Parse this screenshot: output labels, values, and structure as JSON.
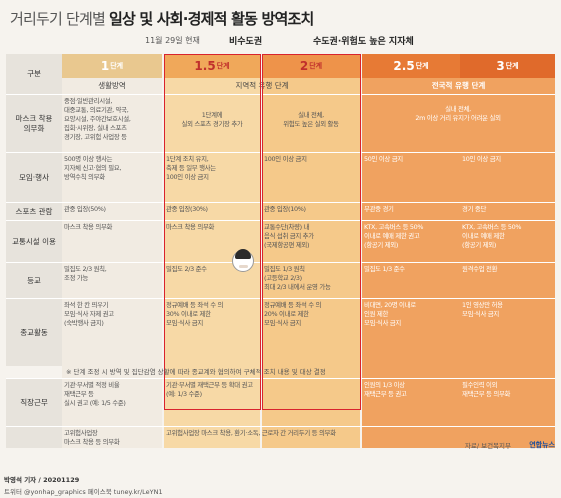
{
  "title_light": "거리두기 단계별 ",
  "title_bold": "일상 및 사회·경제적 활동 방역조치",
  "date_label": "11월 29일 현재",
  "stage_b1": "비수도권",
  "stage_b2": "수도권·위험도 높은 지자체",
  "header_label": "구분",
  "stages": [
    {
      "num": "1",
      "unit": "단계"
    },
    {
      "num": "1.5",
      "unit": "단계"
    },
    {
      "num": "2",
      "unit": "단계"
    },
    {
      "num": "2.5",
      "unit": "단계"
    },
    {
      "num": "3",
      "unit": "단계"
    }
  ],
  "subheads": {
    "s1": "생활방역",
    "s2": "지역적 유행 단계",
    "s3": "전국적 유행 단계"
  },
  "rows": [
    {
      "head": "마스크 착용\n의무화",
      "c1": "중점·일반관리시설,\n대중교통, 의료기관, 약국,\n요양시설, 주야간보호시설,\n집회·시위장, 실내 스포츠\n경기장, 고위험 사업장 등",
      "c2": "1단계에\n실외 스포츠 경기장 추가",
      "c3": "실내 전체,\n위험도 높은 실외 활동",
      "c4": "실내 전체,\n2m 이상 거리 유지가 어려운 실외"
    },
    {
      "head": "모임·행사",
      "c1": "500명 이상 행사는\n지자체 신고·협의 필요,\n방역수칙 의무화",
      "c2": "1단계 조치 유지,\n축제 등 일부 행사는\n100인 이상 금지",
      "c3": "100인 이상 금지",
      "c4": "50인 이상 금지",
      "c5": "10인 이상 금지"
    },
    {
      "head": "스포츠 관람",
      "c1": "관중 입장(50%)",
      "c2": "관중 입장(30%)",
      "c3": "관중 입장(10%)",
      "c4": "무관중 경기",
      "c5": "경기 중단"
    },
    {
      "head": "교통시설 이용",
      "c1": "마스크 착용 의무화",
      "c2": "마스크 착용 의무화",
      "c3": "교통수단(차량) 내\n음식 섭취 금지 추가\n(국제항공편 제외)",
      "c4": "KTX, 고속버스 등 50%\n이내로 예매 제한 권고\n(항공기 제외)",
      "c5": "KTX, 고속버스 등 50%\n이내로 예매 제한\n(항공기 제외)"
    },
    {
      "head": "등교",
      "c1": "밀집도 2/3 원칙,\n조정 가능",
      "c2": "밀집도 2/3 준수",
      "c3": "밀집도 1/3 원칙\n(고등학교 2/3)\n최대 2/3 내에서 운영 가능",
      "c4": "밀집도 1/3 준수",
      "c5": "원격수업 전환"
    },
    {
      "head": "종교활동",
      "c1": "좌석 한 칸 띄우기\n모임·식사 자제 권고\n(숙박행사 금지)",
      "c2": "정규예배 등 좌석 수 의\n30% 이내로 제한\n모임·식사 금지",
      "c3": "정규예배 등 좌석 수 의\n20% 이내로 제한\n모임·식사 금지",
      "c4": "비대면, 20명 이내로\n인원 제한\n모임·식사 금지",
      "c5": "1인 영상만 허용\n모임·식사 금지"
    },
    {
      "head": "직장근무",
      "c1": "기관·부서별 적정 비율\n재택근무 등\n실시 권고 (예: 1/5 수준)",
      "c23": "기관·부서별 재택근무 등 확대 권고\n(예: 1/3 수준)",
      "c4": "인원의 1/3 이상\n재택근무 등 권고",
      "c5": "필수인력 이외\n재택근무 등 의무화"
    },
    {
      "head": "",
      "c1": "고위험사업장\n마스크 착용 등 의무화",
      "c25": "고위험사업장 마스크 착용, 환기·소독, 근로자 간 거리두기 등 의무화"
    }
  ],
  "note": "※ 단계 조정 시 방역 및 집단감염 상황에 따라 종교계와 협의하여 구체적 조치 내용 및 대상 결정",
  "source": "자료/ 보건복지부",
  "logo": "연합뉴스",
  "credit1": "박영석 기자 / 20201129",
  "credit2": "트위터 @yonhap_graphics  페이스북 tuney.kr/LeYN1"
}
